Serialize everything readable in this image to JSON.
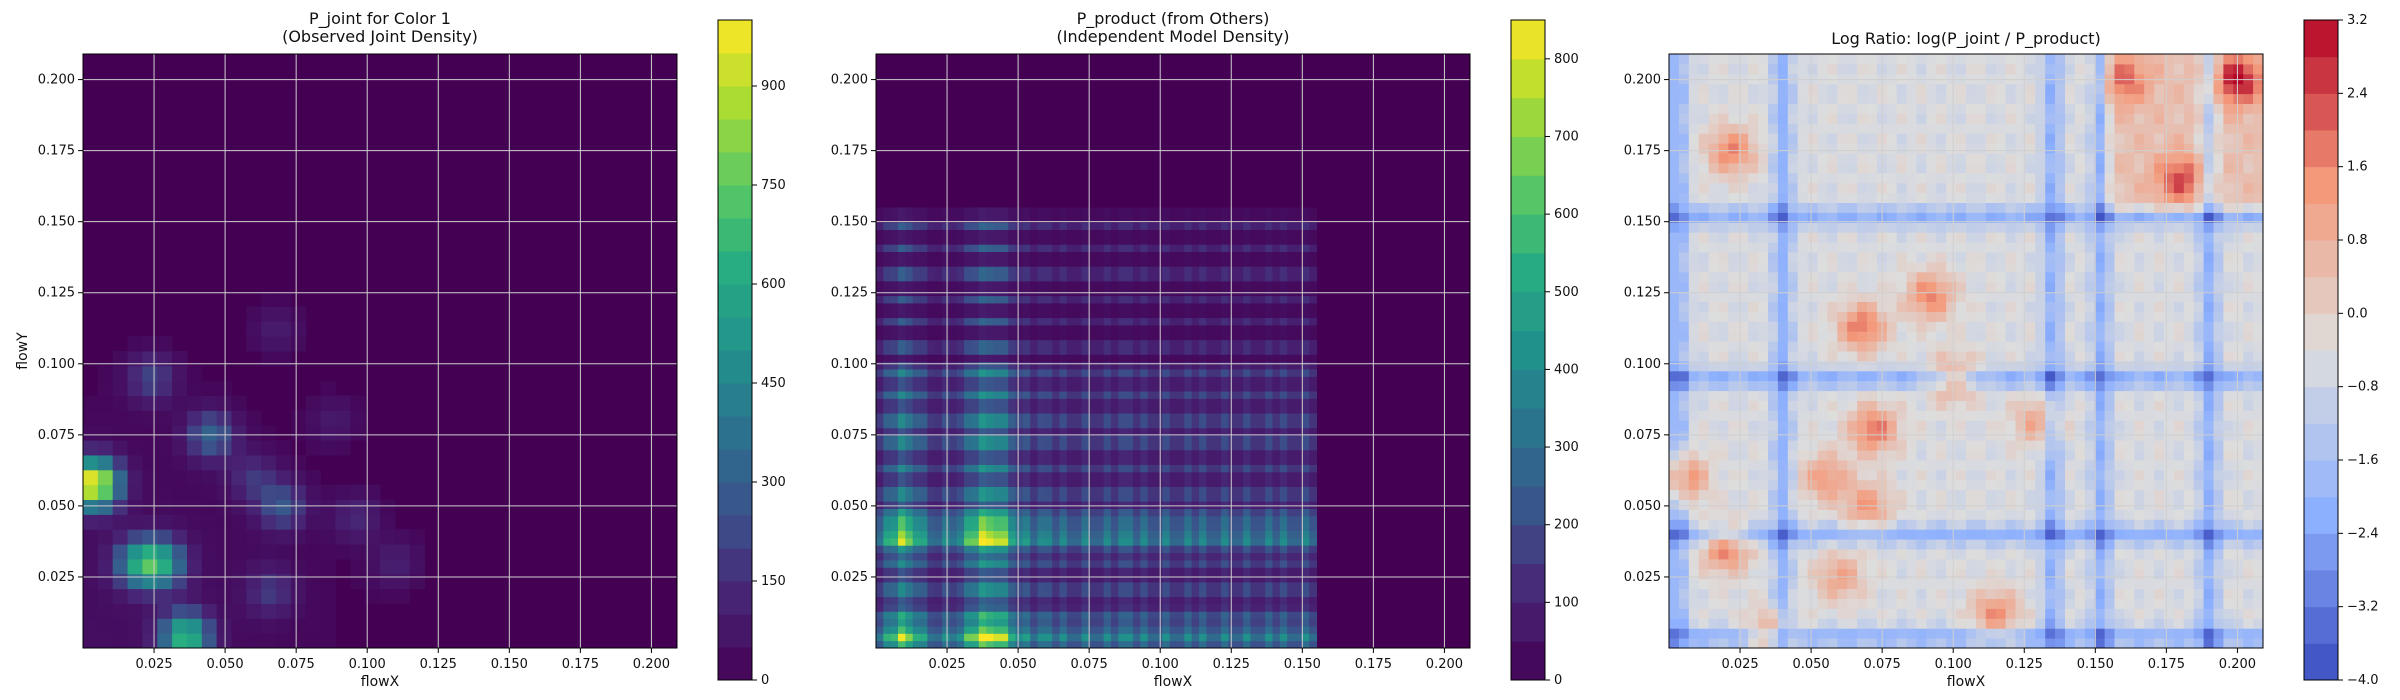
{
  "chart_data": [
    {
      "type": "heatmap",
      "title": "P_joint for Color 1\n(Observed Joint Density)",
      "xlabel": "flowX",
      "ylabel": "flowY",
      "xlim": [
        0.0,
        0.209
      ],
      "ylim": [
        0.0,
        0.209
      ],
      "xticks": [
        "0.025",
        "0.050",
        "0.075",
        "0.100",
        "0.125",
        "0.150",
        "0.175",
        "0.200"
      ],
      "yticks": [
        "0.025",
        "0.050",
        "0.075",
        "0.100",
        "0.125",
        "0.150",
        "0.175",
        "0.200"
      ],
      "grid": true,
      "colormap": "viridis",
      "colorbar": {
        "min": 0,
        "max": 1000,
        "ticks": [
          "0",
          "150",
          "300",
          "450",
          "600",
          "750",
          "900"
        ]
      },
      "hotspots": [
        {
          "x": 0.004,
          "y": 0.058,
          "value": 1000
        },
        {
          "x": 0.036,
          "y": 0.004,
          "value": 640
        },
        {
          "x": 0.02,
          "y": 0.03,
          "value": 480
        },
        {
          "x": 0.028,
          "y": 0.03,
          "value": 430
        },
        {
          "x": 0.045,
          "y": 0.075,
          "value": 300
        },
        {
          "x": 0.07,
          "y": 0.05,
          "value": 250
        },
        {
          "x": 0.024,
          "y": 0.095,
          "value": 200
        },
        {
          "x": 0.066,
          "y": 0.02,
          "value": 160
        },
        {
          "x": 0.06,
          "y": 0.06,
          "value": 150
        },
        {
          "x": 0.096,
          "y": 0.046,
          "value": 120
        },
        {
          "x": 0.11,
          "y": 0.03,
          "value": 100
        },
        {
          "x": 0.068,
          "y": 0.112,
          "value": 90
        },
        {
          "x": 0.088,
          "y": 0.08,
          "value": 80
        }
      ]
    },
    {
      "type": "heatmap",
      "title": "P_product (from Others)\n(Independent Model Density)",
      "xlabel": "flowX",
      "ylabel": "",
      "xlim": [
        0.0,
        0.209
      ],
      "ylim": [
        0.0,
        0.209
      ],
      "xticks": [
        "0.025",
        "0.050",
        "0.075",
        "0.100",
        "0.125",
        "0.150",
        "0.175",
        "0.200"
      ],
      "yticks": [
        "0.025",
        "0.050",
        "0.075",
        "0.100",
        "0.125",
        "0.150",
        "0.175",
        "0.200"
      ],
      "grid": true,
      "colormap": "viridis",
      "colorbar": {
        "min": 0,
        "max": 850,
        "ticks": [
          "0",
          "100",
          "200",
          "300",
          "400",
          "500",
          "600",
          "700",
          "800"
        ]
      },
      "peak_value": 820,
      "active_region_x": [
        0.0,
        0.155
      ],
      "active_region_y": [
        0.0,
        0.155
      ]
    },
    {
      "type": "heatmap",
      "title": "Log Ratio: log(P_joint / P_product)",
      "xlabel": "flowX",
      "ylabel": "",
      "xlim": [
        0.0,
        0.209
      ],
      "ylim": [
        0.0,
        0.209
      ],
      "xticks": [
        "0.025",
        "0.050",
        "0.075",
        "0.100",
        "0.125",
        "0.150",
        "0.175",
        "0.200"
      ],
      "yticks": [
        "0.025",
        "0.050",
        "0.075",
        "0.100",
        "0.125",
        "0.150",
        "0.175",
        "0.200"
      ],
      "grid": true,
      "colormap": "coolwarm",
      "colorbar": {
        "min": -4.0,
        "max": 3.2,
        "ticks": [
          "−4.0",
          "−3.2",
          "−2.4",
          "−1.6",
          "−0.8",
          "0.0",
          "0.8",
          "1.6",
          "2.4",
          "3.2"
        ]
      },
      "positive_hotspots": [
        {
          "x": 0.004,
          "y": 0.06,
          "value": 2.0
        },
        {
          "x": 0.02,
          "y": 0.035,
          "value": 1.6
        },
        {
          "x": 0.072,
          "y": 0.077,
          "value": 1.8
        },
        {
          "x": 0.068,
          "y": 0.113,
          "value": 1.8
        },
        {
          "x": 0.092,
          "y": 0.124,
          "value": 1.6
        },
        {
          "x": 0.022,
          "y": 0.175,
          "value": 1.6
        },
        {
          "x": 0.2,
          "y": 0.2,
          "value": 2.2
        },
        {
          "x": 0.18,
          "y": 0.165,
          "value": 1.4
        },
        {
          "x": 0.115,
          "y": 0.012,
          "value": 1.4
        },
        {
          "x": 0.036,
          "y": 0.005,
          "value": 1.3
        },
        {
          "x": 0.055,
          "y": 0.06,
          "value": 1.2
        },
        {
          "x": 0.1,
          "y": 0.095,
          "value": 1.2
        },
        {
          "x": 0.07,
          "y": 0.05,
          "value": 1.2
        },
        {
          "x": 0.06,
          "y": 0.025,
          "value": 1.0
        },
        {
          "x": 0.13,
          "y": 0.08,
          "value": 1.0
        },
        {
          "x": 0.16,
          "y": 0.2,
          "value": 1.1
        }
      ],
      "negative_bands_x": [
        0.003,
        0.04,
        0.135,
        0.152,
        0.19
      ],
      "negative_bands_y": [
        0.004,
        0.04,
        0.095,
        0.152
      ]
    }
  ]
}
